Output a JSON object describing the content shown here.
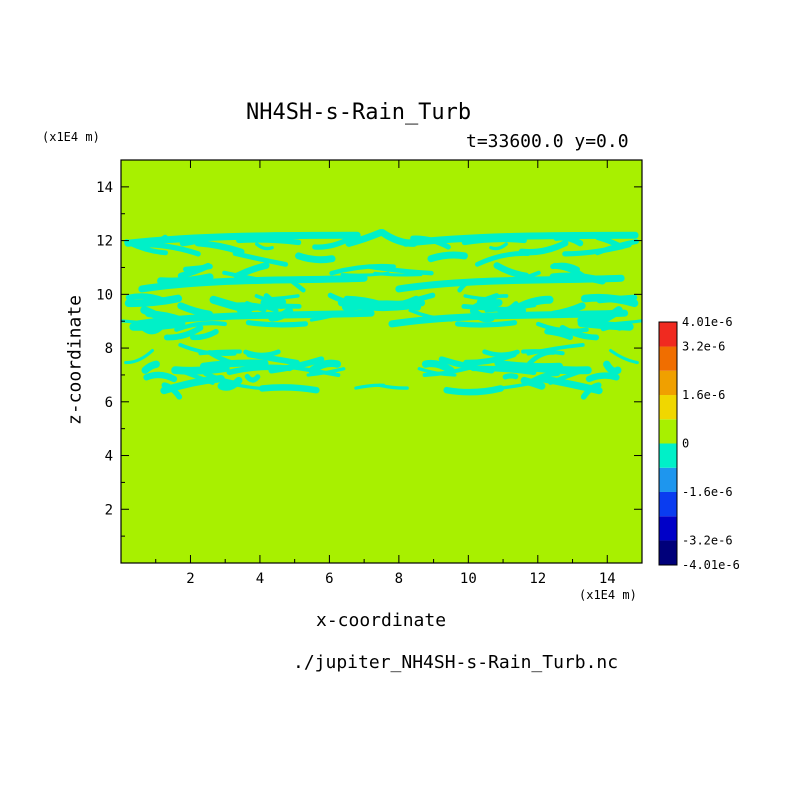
{
  "chart_data": {
    "type": "heatmap",
    "title": "NH4SH-s-Rain_Turb",
    "subtitle": "t=33600.0 y=0.0",
    "xlabel": "x-coordinate",
    "ylabel": "z-coordinate",
    "x_unit": "(x1E4 m)",
    "y_unit": "(x1E4 m)",
    "source_file": "./jupiter_NH4SH-s-Rain_Turb.nc",
    "xlim": [
      0.0,
      15.0
    ],
    "ylim": [
      0.0,
      15.0
    ],
    "x_ticks": [
      2,
      4,
      6,
      8,
      10,
      12,
      14
    ],
    "y_ticks": [
      2,
      4,
      6,
      8,
      10,
      12,
      14
    ],
    "colorbar": {
      "levels": [
        -4.01e-06,
        -3.2e-06,
        -2.4e-06,
        -1.6e-06,
        -8e-07,
        0,
        8e-07,
        1.6e-06,
        2.4e-06,
        3.2e-06,
        4.01e-06
      ],
      "colors": [
        "#00007a",
        "#0000c8",
        "#0a3cf0",
        "#1e96ee",
        "#00f0c8",
        "#a8f000",
        "#f0d700",
        "#f0a000",
        "#f06e00",
        "#f02a20"
      ],
      "tick_labels": [
        "4.01e-6",
        "3.2e-6",
        "1.6e-6",
        "0",
        "-1.6e-6",
        "-3.2e-6",
        "-4.01e-6"
      ],
      "tick_values": [
        4.01e-06,
        3.2e-06,
        1.6e-06,
        0,
        -1.6e-06,
        -3.2e-06,
        -4.01e-06
      ]
    },
    "background_value": 0,
    "background_color": "#a8f000",
    "negative_region_color": "#00f0c8",
    "negative_region_z_range": [
      6.0,
      12.3
    ]
  }
}
